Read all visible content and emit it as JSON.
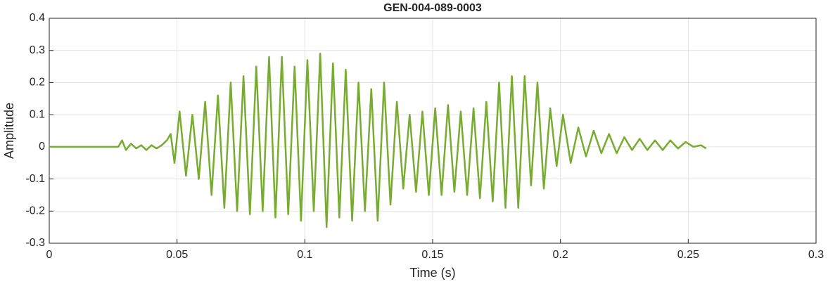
{
  "chart_data": {
    "type": "line",
    "title": "GEN-004-089-0003",
    "x_label": "Time (s)",
    "y_label": "Amplitude",
    "color": "#77ac30",
    "grid": true,
    "xlim": [
      0,
      0.3
    ],
    "xticks": [
      0,
      0.05,
      0.1,
      0.15,
      0.2,
      0.25,
      0.3
    ],
    "ylim": [
      -0.3,
      0.4
    ],
    "yticks": [
      -0.3,
      -0.2,
      -0.1,
      0,
      0.1,
      0.2,
      0.3,
      0.4
    ],
    "x": [
      0,
      0.01,
      0.02,
      0.027,
      0.0285,
      0.03,
      0.032,
      0.034,
      0.036,
      0.038,
      0.04,
      0.042,
      0.044,
      0.046,
      0.0475,
      0.049,
      0.051,
      0.0535,
      0.056,
      0.0585,
      0.061,
      0.0635,
      0.066,
      0.0685,
      0.071,
      0.0735,
      0.076,
      0.0785,
      0.081,
      0.0835,
      0.086,
      0.0885,
      0.091,
      0.0935,
      0.096,
      0.0985,
      0.101,
      0.1035,
      0.106,
      0.1085,
      0.111,
      0.1135,
      0.116,
      0.1185,
      0.121,
      0.1235,
      0.126,
      0.1285,
      0.131,
      0.1335,
      0.136,
      0.1385,
      0.141,
      0.1435,
      0.146,
      0.1485,
      0.151,
      0.1535,
      0.156,
      0.1585,
      0.161,
      0.1635,
      0.166,
      0.1685,
      0.171,
      0.1735,
      0.176,
      0.1785,
      0.181,
      0.1835,
      0.186,
      0.1885,
      0.191,
      0.1935,
      0.196,
      0.1985,
      0.201,
      0.204,
      0.207,
      0.21,
      0.213,
      0.216,
      0.219,
      0.222,
      0.225,
      0.228,
      0.231,
      0.234,
      0.237,
      0.24,
      0.243,
      0.246,
      0.249,
      0.252,
      0.255,
      0.257
    ],
    "values": [
      0,
      0,
      0,
      0,
      0.02,
      -0.01,
      0.01,
      -0.005,
      0.005,
      -0.01,
      0.005,
      -0.005,
      0.005,
      0.02,
      0.04,
      -0.05,
      0.11,
      -0.09,
      0.1,
      -0.1,
      0.14,
      -0.15,
      0.16,
      -0.19,
      0.2,
      -0.2,
      0.22,
      -0.21,
      0.25,
      -0.2,
      0.28,
      -0.22,
      0.28,
      -0.21,
      0.25,
      -0.23,
      0.27,
      -0.2,
      0.29,
      -0.25,
      0.26,
      -0.22,
      0.24,
      -0.23,
      0.2,
      -0.2,
      0.18,
      -0.23,
      0.2,
      -0.18,
      0.14,
      -0.13,
      0.1,
      -0.14,
      0.11,
      -0.15,
      0.12,
      -0.15,
      0.13,
      -0.14,
      0.11,
      -0.15,
      0.12,
      -0.16,
      0.14,
      -0.17,
      0.2,
      -0.19,
      0.22,
      -0.19,
      0.22,
      -0.12,
      0.2,
      -0.13,
      0.12,
      -0.06,
      0.1,
      -0.05,
      0.06,
      -0.03,
      0.05,
      -0.02,
      0.04,
      -0.02,
      0.03,
      -0.01,
      0.025,
      -0.01,
      0.02,
      -0.01,
      0.02,
      -0.005,
      0.015,
      0,
      0.005,
      -0.005
    ]
  }
}
